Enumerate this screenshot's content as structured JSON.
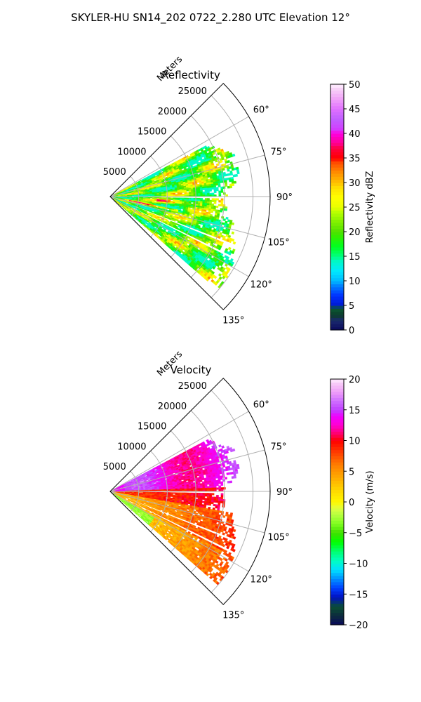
{
  "suptitle": "SKYLER-HU  SN14_202  0722_2.280 UTC Elevation 12°",
  "chart_data": [
    {
      "type": "heatmap",
      "projection": "polar-sector",
      "title": "Reflectivity",
      "radial_axis_label": "Meters",
      "radial_ticks": [
        5000,
        10000,
        15000,
        20000,
        25000
      ],
      "radial_tick_labels": [
        "5000",
        "10000",
        "15000",
        "20000",
        "25000"
      ],
      "r_max": 28000,
      "angular_ticks": [
        60,
        75,
        90,
        105,
        120,
        135
      ],
      "angular_tick_labels": [
        "60°",
        "75°",
        "90°",
        "105°",
        "120°",
        "135°"
      ],
      "angular_range_deg": [
        45,
        135
      ],
      "grid": true,
      "colorbar": {
        "label": "Reflectivity dBZ",
        "min": 0,
        "max": 50,
        "ticks": [
          0,
          5,
          10,
          15,
          20,
          25,
          30,
          35,
          40,
          45,
          50
        ],
        "tick_labels": [
          "0",
          "5",
          "10",
          "15",
          "20",
          "25",
          "30",
          "35",
          "40",
          "45",
          "50"
        ],
        "colorscale": "NWSRef"
      },
      "field_summary": {
        "dominant_range": [
          18,
          30
        ],
        "max_observed": 38,
        "data_extent_m": [
          0,
          25000
        ]
      }
    },
    {
      "type": "heatmap",
      "projection": "polar-sector",
      "title": "Velocity",
      "radial_axis_label": "Meters",
      "radial_ticks": [
        5000,
        10000,
        15000,
        20000,
        25000
      ],
      "radial_tick_labels": [
        "5000",
        "10000",
        "15000",
        "20000",
        "25000"
      ],
      "r_max": 28000,
      "angular_ticks": [
        60,
        75,
        90,
        105,
        120,
        135
      ],
      "angular_tick_labels": [
        "60°",
        "75°",
        "90°",
        "105°",
        "120°",
        "135°"
      ],
      "angular_range_deg": [
        45,
        135
      ],
      "grid": true,
      "colorbar": {
        "label": "Velocity (m/s)",
        "min": -20,
        "max": 20,
        "ticks": [
          -20,
          -15,
          -10,
          -5,
          0,
          5,
          10,
          15,
          20
        ],
        "tick_labels": [
          "−20",
          "−15",
          "−10",
          "−5",
          "0",
          "5",
          "10",
          "15",
          "20"
        ],
        "colorscale": "NWSVel"
      },
      "field_summary": {
        "north_of_90deg": [
          12,
          16
        ],
        "south_of_90deg": [
          0,
          10
        ],
        "data_extent_m": [
          0,
          25000
        ]
      }
    }
  ]
}
